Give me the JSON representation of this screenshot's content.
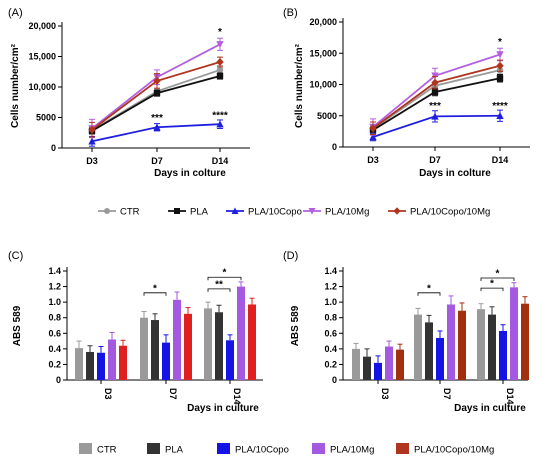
{
  "chart_data": [
    {
      "panel": "(A)",
      "type": "line",
      "ylabel": "Cells number/cm²",
      "xlabel": "Days in colture",
      "categories": [
        "D3",
        "D7",
        "D14"
      ],
      "ylim": [
        0,
        20000
      ],
      "yticks": [
        0,
        5000,
        10000,
        15000,
        20000
      ],
      "ytick_labels": [
        "0",
        "5000",
        "10,000",
        "15,000",
        "20,000"
      ],
      "series": [
        {
          "name": "CTR",
          "color": "#999999",
          "marker": "circle",
          "values": [
            2900,
            9300,
            12800
          ],
          "err": [
            600,
            500,
            700
          ]
        },
        {
          "name": "PLA",
          "color": "#111111",
          "marker": "square",
          "values": [
            2800,
            9000,
            11800
          ],
          "err": [
            500,
            500,
            500
          ]
        },
        {
          "name": "PLA/10Copo",
          "color": "#1f1fe0",
          "marker": "triangle",
          "values": [
            1100,
            3400,
            3900
          ],
          "err": [
            800,
            600,
            700
          ]
        },
        {
          "name": "PLA/10Mg",
          "color": "#b45fe0",
          "marker": "triangle-down",
          "values": [
            3200,
            11600,
            17000
          ],
          "err": [
            1500,
            1200,
            1000
          ]
        },
        {
          "name": "PLA/10Copo/10Mg",
          "color": "#b0351f",
          "marker": "diamond",
          "values": [
            3000,
            11000,
            14100
          ],
          "err": [
            1200,
            1200,
            800
          ]
        }
      ],
      "annotations": [
        {
          "cat": "D14",
          "value": 18500,
          "text": "*"
        },
        {
          "cat": "D7",
          "value": 4400,
          "text": "***"
        },
        {
          "cat": "D14",
          "value": 4800,
          "text": "****"
        }
      ]
    },
    {
      "panel": "(B)",
      "type": "line",
      "ylabel": "Cells number/cm²",
      "xlabel": "Days in colture",
      "categories": [
        "D3",
        "D7",
        "D14"
      ],
      "ylim": [
        0,
        20000
      ],
      "yticks": [
        0,
        5000,
        10000,
        15000,
        20000
      ],
      "ytick_labels": [
        "0",
        "5000",
        "10,000",
        "15,000",
        "20,000"
      ],
      "series": [
        {
          "name": "CTR",
          "color": "#999999",
          "marker": "circle",
          "values": [
            2900,
            9800,
            12300
          ],
          "err": [
            500,
            600,
            600
          ]
        },
        {
          "name": "PLA",
          "color": "#111111",
          "marker": "square",
          "values": [
            2700,
            8800,
            11000
          ],
          "err": [
            500,
            600,
            600
          ]
        },
        {
          "name": "PLA/10Copo",
          "color": "#1f1fe0",
          "marker": "triangle",
          "values": [
            1600,
            4900,
            5000
          ],
          "err": [
            600,
            900,
            900
          ]
        },
        {
          "name": "PLA/10Mg",
          "color": "#b45fe0",
          "marker": "triangle-down",
          "values": [
            3200,
            11400,
            14800
          ],
          "err": [
            1300,
            1200,
            1000
          ]
        },
        {
          "name": "PLA/10Copo/10Mg",
          "color": "#b0351f",
          "marker": "diamond",
          "values": [
            3000,
            10300,
            13000
          ],
          "err": [
            1000,
            1000,
            900
          ]
        }
      ],
      "annotations": [
        {
          "cat": "D14",
          "value": 16300,
          "text": "*"
        },
        {
          "cat": "D7",
          "value": 6100,
          "text": "***"
        },
        {
          "cat": "D14",
          "value": 6100,
          "text": "****"
        }
      ]
    },
    {
      "panel": "(C)",
      "type": "bar",
      "ylabel": "ABS 589",
      "xlabel": "Days in culture",
      "categories": [
        "D3",
        "D7",
        "D14"
      ],
      "ylim": [
        0,
        1.4
      ],
      "yticks": [
        0,
        0.2,
        0.4,
        0.6,
        0.8,
        1.0,
        1.2,
        1.4
      ],
      "ytick_labels": [
        "0",
        "0.2",
        "0.4",
        "0.6",
        "0.8",
        "1.0",
        "1.2",
        "1.4"
      ],
      "series": [
        {
          "name": "CTR",
          "color": "#9a9a9a",
          "values": [
            0.41,
            0.8,
            0.92
          ],
          "err": [
            0.09,
            0.08,
            0.08
          ]
        },
        {
          "name": "PLA",
          "color": "#333333",
          "values": [
            0.36,
            0.77,
            0.87
          ],
          "err": [
            0.08,
            0.08,
            0.09
          ]
        },
        {
          "name": "PLA/10Copo",
          "color": "#1414e6",
          "values": [
            0.35,
            0.48,
            0.51
          ],
          "err": [
            0.08,
            0.1,
            0.07
          ]
        },
        {
          "name": "PLA/10Mg",
          "color": "#a45ae0",
          "values": [
            0.52,
            1.03,
            1.2
          ],
          "err": [
            0.09,
            0.1,
            0.06
          ]
        },
        {
          "name": "PLA/10Copo/10Mg",
          "color": "#e02020",
          "values": [
            0.44,
            0.85,
            0.97
          ],
          "err": [
            0.07,
            0.08,
            0.08
          ]
        }
      ],
      "brackets": [
        {
          "cat": "D7",
          "from": 0,
          "to": 2,
          "y": 1.12,
          "text": "*"
        },
        {
          "cat": "D14",
          "from": 0,
          "to": 2,
          "y": 1.17,
          "text": "**"
        },
        {
          "cat": "D14",
          "from": 0,
          "to": 3,
          "y": 1.32,
          "text": "*"
        }
      ]
    },
    {
      "panel": "(D)",
      "type": "bar",
      "ylabel": "ABS 589",
      "xlabel": "Days in culture",
      "categories": [
        "D3",
        "D7",
        "D14"
      ],
      "ylim": [
        0,
        1.4
      ],
      "yticks": [
        0,
        0.2,
        0.4,
        0.6,
        0.8,
        1.0,
        1.2,
        1.4
      ],
      "ytick_labels": [
        "0",
        "0.2",
        "0.4",
        "0.6",
        "0.8",
        "1.0",
        "1.2",
        "1.4"
      ],
      "series": [
        {
          "name": "CTR",
          "color": "#9a9a9a",
          "values": [
            0.4,
            0.84,
            0.91
          ],
          "err": [
            0.07,
            0.08,
            0.07
          ]
        },
        {
          "name": "PLA",
          "color": "#333333",
          "values": [
            0.3,
            0.74,
            0.84
          ],
          "err": [
            0.1,
            0.09,
            0.1
          ]
        },
        {
          "name": "PLA/10Copo",
          "color": "#1414e6",
          "values": [
            0.22,
            0.54,
            0.63
          ],
          "err": [
            0.09,
            0.09,
            0.08
          ]
        },
        {
          "name": "PLA/10Mg",
          "color": "#a45ae0",
          "values": [
            0.43,
            0.97,
            1.19
          ],
          "err": [
            0.07,
            0.11,
            0.06
          ]
        },
        {
          "name": "PLA/10Copo/10Mg",
          "color": "#a0300e",
          "values": [
            0.39,
            0.89,
            0.98
          ],
          "err": [
            0.07,
            0.1,
            0.09
          ]
        }
      ],
      "brackets": [
        {
          "cat": "D7",
          "from": 0,
          "to": 2,
          "y": 1.12,
          "text": "*"
        },
        {
          "cat": "D14",
          "from": 0,
          "to": 2,
          "y": 1.18,
          "text": "*"
        },
        {
          "cat": "D14",
          "from": 0,
          "to": 3,
          "y": 1.31,
          "text": "*"
        }
      ]
    }
  ],
  "legend_top": [
    {
      "name": "CTR",
      "color": "#999999",
      "marker": "circle"
    },
    {
      "name": "PLA",
      "color": "#111111",
      "marker": "square"
    },
    {
      "name": "PLA/10Copo",
      "color": "#1f1fe0",
      "marker": "triangle"
    },
    {
      "name": "PLA/10Mg",
      "color": "#b45fe0",
      "marker": "triangle-down"
    },
    {
      "name": "PLA/10Copo/10Mg",
      "color": "#b0351f",
      "marker": "diamond"
    }
  ],
  "legend_bottom": [
    {
      "name": "CTR",
      "color": "#9a9a9a"
    },
    {
      "name": "PLA",
      "color": "#333333"
    },
    {
      "name": "PLA/10Copo",
      "color": "#1414e6"
    },
    {
      "name": "PLA/10Mg",
      "color": "#a45ae0"
    },
    {
      "name": "PLA/10Copo/10Mg",
      "color": "#b0351f"
    }
  ]
}
